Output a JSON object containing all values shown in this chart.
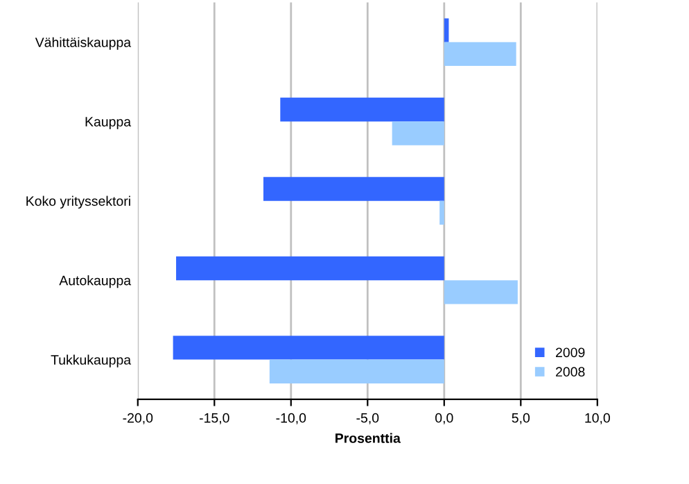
{
  "chart_data": {
    "type": "bar",
    "orientation": "horizontal",
    "xlabel": "Prosenttia",
    "categories": [
      "Vähittäiskauppa",
      "Kauppa",
      "Koko yrityssektori",
      "Autokauppa",
      "Tukkukauppa"
    ],
    "series": [
      {
        "name": "2009",
        "color": "#3366ff",
        "values": [
          0.3,
          -10.7,
          -11.8,
          -17.5,
          -17.7
        ]
      },
      {
        "name": "2008",
        "color": "#99ccff",
        "values": [
          4.7,
          -3.4,
          -0.3,
          4.8,
          -11.4
        ]
      }
    ],
    "xlim": [
      -20,
      10
    ],
    "xticks": [
      {
        "value": -20,
        "label": "-20,0"
      },
      {
        "value": -15,
        "label": "-15,0"
      },
      {
        "value": -10,
        "label": "-10,0"
      },
      {
        "value": -5,
        "label": "-5,0"
      },
      {
        "value": 0,
        "label": "0,0"
      },
      {
        "value": 5,
        "label": "5,0"
      },
      {
        "value": 10,
        "label": "10,0"
      }
    ],
    "grid": "x",
    "legend": "bottom right"
  }
}
